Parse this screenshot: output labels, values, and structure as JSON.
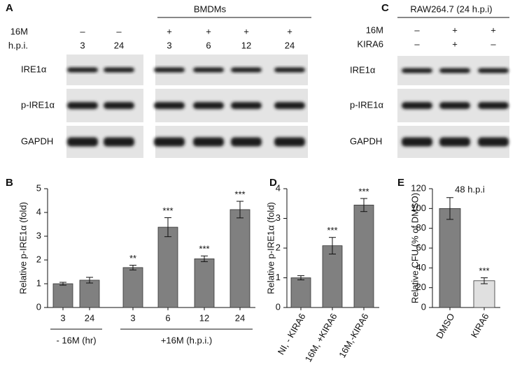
{
  "blots": [
    {
      "panel": "A",
      "header": "BMDMs",
      "rows": [
        {
          "label": "16M",
          "values": [
            "–",
            "–",
            "+",
            "+",
            "+",
            "+"
          ]
        },
        {
          "label": "h.p.i.",
          "values": [
            "3",
            "24",
            "3",
            "6",
            "12",
            "24"
          ]
        }
      ],
      "bands": [
        "IRE1α",
        "p-IRE1α",
        "GAPDH"
      ]
    },
    {
      "panel": "C",
      "header": "RAW264.7 (24 h.p.i)",
      "rows": [
        {
          "label": "16M",
          "values": [
            "–",
            "+",
            "+"
          ]
        },
        {
          "label": "KIRA6",
          "values": [
            "–",
            "+",
            "–"
          ]
        }
      ],
      "bands": [
        "IRE1α",
        "p-IRE1α",
        "GAPDH"
      ]
    }
  ],
  "chart_data": [
    {
      "type": "bar",
      "panel": "B",
      "y_label": "Relative p-IRE1α (fold)",
      "categories": [
        "3",
        "24",
        "3",
        "6",
        "12",
        "24"
      ],
      "group_labels": [
        "- 16M (hr)",
        "+16M (h.p.i.)"
      ],
      "values": [
        1.0,
        1.15,
        1.68,
        3.38,
        2.05,
        4.12
      ],
      "errors": [
        0.06,
        0.12,
        0.1,
        0.4,
        0.12,
        0.35
      ],
      "value_annotations": [
        null,
        null,
        "**",
        "***",
        "***",
        "***"
      ],
      "color": "#808080",
      "ylim": [
        0,
        5
      ],
      "yticks": [
        0,
        1,
        2,
        3,
        4,
        5
      ]
    },
    {
      "type": "bar",
      "panel": "D",
      "y_label": "Relative p-IRE1α (fold)",
      "categories": [
        "NI, - KIRA6",
        "16M, +KIRA6",
        "16M,-KIRA6"
      ],
      "values": [
        1.0,
        2.08,
        3.45
      ],
      "errors": [
        0.07,
        0.28,
        0.22
      ],
      "value_annotations": [
        null,
        "***",
        "***"
      ],
      "color": "#808080",
      "ylim": [
        0,
        4
      ],
      "yticks": [
        0,
        1,
        2,
        3,
        4
      ]
    },
    {
      "type": "bar",
      "panel": "E",
      "y_label": "Relative CFU (% of DMSO)",
      "annotation": "48 h.p.i",
      "categories": [
        "DMSO",
        "KIRA6"
      ],
      "values": [
        100,
        27
      ],
      "errors": [
        11,
        3
      ],
      "value_annotations": [
        null,
        "***"
      ],
      "colors": [
        "#808080",
        "#e0e0e0"
      ],
      "ylim": [
        0,
        120
      ],
      "yticks": [
        0,
        20,
        40,
        60,
        80,
        100,
        120
      ]
    }
  ]
}
